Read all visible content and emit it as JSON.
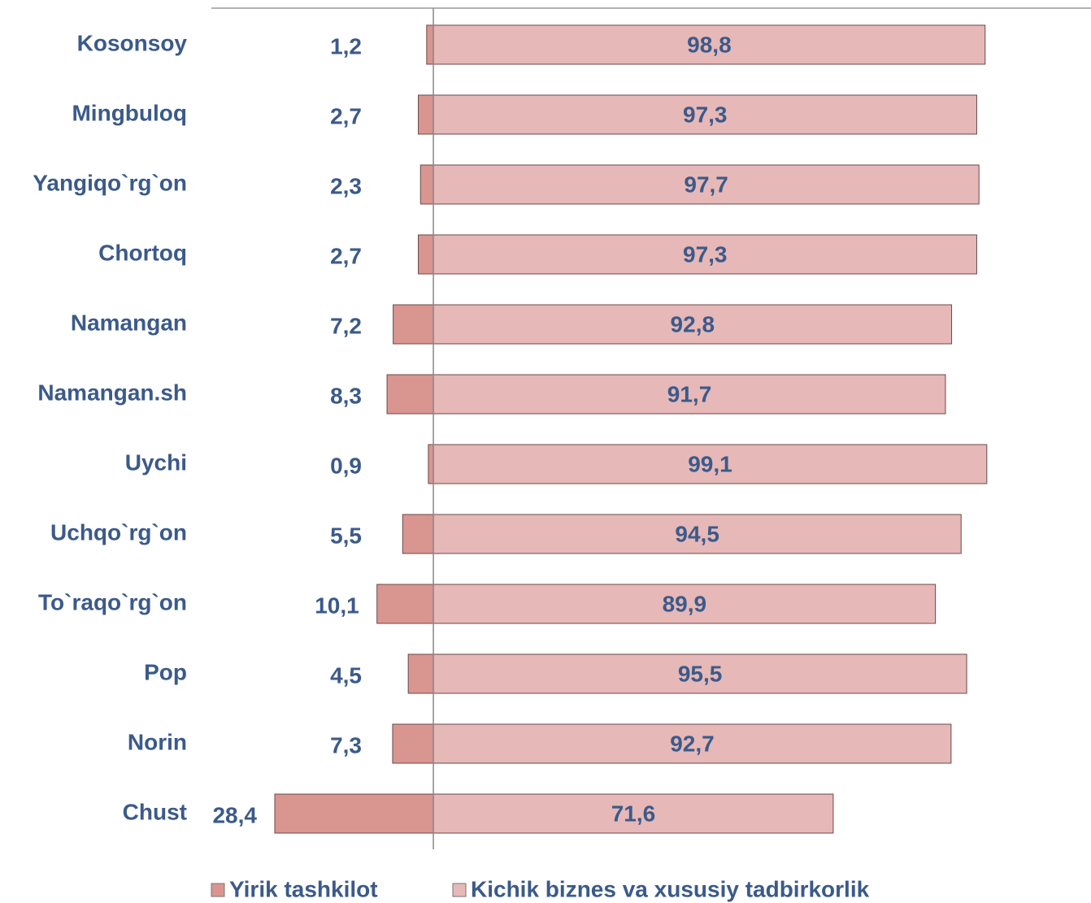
{
  "chart_data": {
    "type": "diverging_bar",
    "categories": [
      "Kosonsoy",
      "Mingbuloq",
      "Yangiqo`rg`on",
      "Chortoq",
      "Namangan",
      "Namangan.sh",
      "Uychi",
      "Uchqo`rg`on",
      "To`raqo`rg`on",
      "Pop",
      "Norin",
      "Chust"
    ],
    "xlim": [
      -30,
      100
    ],
    "legend": "bottom",
    "series": [
      {
        "name": "Yirik tashkilot",
        "color": "#d9958f",
        "direction": "left",
        "values": [
          1.2,
          2.7,
          2.3,
          2.7,
          7.2,
          8.3,
          0.9,
          5.5,
          10.1,
          4.5,
          7.3,
          28.4
        ],
        "value_labels": [
          "1,2",
          "2,7",
          "2,3",
          "2,7",
          "7,2",
          "8,3",
          "0,9",
          "5,5",
          "10,1",
          "4,5",
          "7,3",
          "28,4"
        ]
      },
      {
        "name": "Kichik biznes va xususiy tadbirkorlik",
        "color": "#e6b8b7",
        "direction": "right",
        "values": [
          98.8,
          97.3,
          97.7,
          97.3,
          92.8,
          91.7,
          99.1,
          94.5,
          89.9,
          95.5,
          92.7,
          71.6
        ],
        "value_labels": [
          "98,8",
          "97,3",
          "97,7",
          "97,3",
          "92,8",
          "91,7",
          "99,1",
          "94,5",
          "89,9",
          "95,5",
          "92,7",
          "71,6"
        ]
      }
    ]
  }
}
